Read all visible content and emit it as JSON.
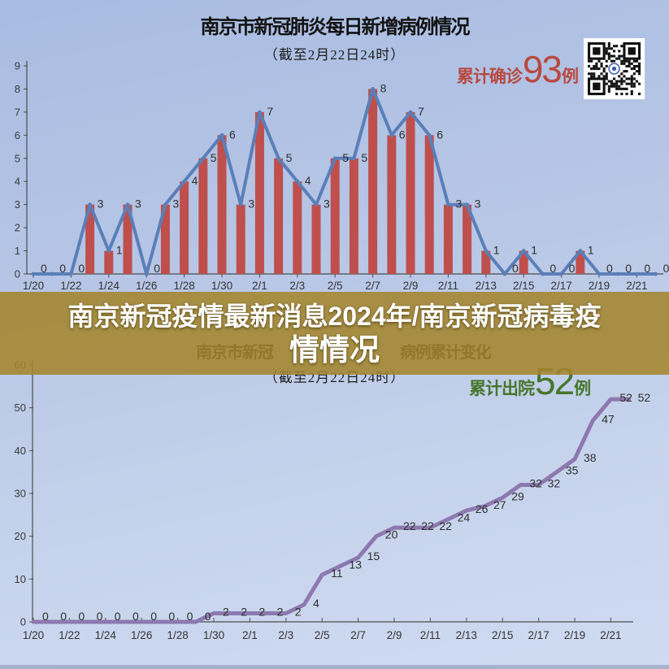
{
  "banner": {
    "line1": "南京新冠疫情最新消息2024年/南京新冠病毒疫",
    "line2": "情情况"
  },
  "top_chart": {
    "title": "南京市新冠肺炎每日新增病例情况",
    "subtitle": "（截至2月22日24时）",
    "legend": {
      "prefix": "累计确诊",
      "value": "93",
      "suffix": "例"
    },
    "qr_icon": "qr-code"
  },
  "bottom_chart": {
    "title_visible_left": "南京市新冠",
    "title_visible_right": "病例累计变化",
    "subtitle": "（截至2月22日24时）",
    "legend": {
      "prefix": "累计出院",
      "value": "52",
      "suffix": "例"
    }
  },
  "colors": {
    "background_top": "#a8bce1",
    "background_bottom": "#cfdbf1",
    "banner_overlay": "#a4852c",
    "bar_color": "#bf4f4c",
    "top_line_color": "#5a7fb8",
    "bottom_line_color": "#8d79b0",
    "confirmed_legend_red": "#b9493f",
    "discharged_legend_green": "#47762b",
    "data_label_color": "#2e2e2e"
  },
  "chart_data": [
    {
      "type": "bar",
      "subtype": "bar-with-line-overlay",
      "title": "南京市新冠肺炎每日新增病例情况",
      "subtitle": "（截至2月22日24时）",
      "legend": "累计确诊93例",
      "categories": [
        "1/20",
        "1/21",
        "1/22",
        "1/23",
        "1/24",
        "1/25",
        "1/26",
        "1/27",
        "1/28",
        "1/29",
        "1/30",
        "1/31",
        "2/1",
        "2/2",
        "2/3",
        "2/4",
        "2/5",
        "2/6",
        "2/7",
        "2/8",
        "2/9",
        "2/10",
        "2/11",
        "2/12",
        "2/13",
        "2/14",
        "2/15",
        "2/16",
        "2/17",
        "2/18",
        "2/19",
        "2/20",
        "2/21",
        "2/22"
      ],
      "values": [
        0,
        0,
        0,
        3,
        1,
        3,
        0,
        3,
        4,
        5,
        6,
        3,
        7,
        5,
        4,
        3,
        5,
        5,
        8,
        6,
        7,
        6,
        3,
        3,
        1,
        0,
        1,
        0,
        0,
        1,
        0,
        0,
        0,
        0
      ],
      "x_tick_labels": [
        "1/20",
        "1/22",
        "1/24",
        "1/26",
        "1/28",
        "1/30",
        "2/1",
        "2/3",
        "2/5",
        "2/7",
        "2/9",
        "2/11",
        "2/13",
        "2/15",
        "2/17",
        "2/19",
        "2/21"
      ],
      "ylim": [
        0,
        9
      ],
      "yticks": [
        0,
        1,
        2,
        3,
        4,
        5,
        6,
        7,
        8,
        9
      ],
      "grid": false,
      "data_labels": true,
      "bar_color": "#bf4f4c",
      "line_color": "#5a7fb8"
    },
    {
      "type": "line",
      "title_visible": "南京市新冠…病例累计变化",
      "subtitle": "（截至2月22日24时）",
      "legend": "累计出院52例",
      "categories": [
        "1/20",
        "1/21",
        "1/22",
        "1/23",
        "1/24",
        "1/25",
        "1/26",
        "1/27",
        "1/28",
        "1/29",
        "1/30",
        "1/31",
        "2/1",
        "2/2",
        "2/3",
        "2/4",
        "2/5",
        "2/6",
        "2/7",
        "2/8",
        "2/9",
        "2/10",
        "2/11",
        "2/12",
        "2/13",
        "2/14",
        "2/15",
        "2/16",
        "2/17",
        "2/18",
        "2/19",
        "2/20",
        "2/21",
        "2/22"
      ],
      "values": [
        0,
        0,
        0,
        0,
        0,
        0,
        0,
        0,
        0,
        0,
        2,
        2,
        2,
        2,
        2,
        4,
        11,
        13,
        15,
        20,
        22,
        22,
        22,
        24,
        26,
        27,
        29,
        32,
        32,
        35,
        38,
        47,
        52,
        52
      ],
      "x_tick_labels": [
        "1/20",
        "1/22",
        "1/24",
        "1/26",
        "1/28",
        "1/30",
        "2/1",
        "2/3",
        "2/5",
        "2/7",
        "2/9",
        "2/11",
        "2/13",
        "2/15",
        "2/17",
        "2/19",
        "2/21"
      ],
      "ylim": [
        0,
        60
      ],
      "yticks": [
        0,
        10,
        20,
        30,
        40,
        50,
        60
      ],
      "grid": false,
      "data_labels": true,
      "line_color": "#8d79b0"
    }
  ]
}
